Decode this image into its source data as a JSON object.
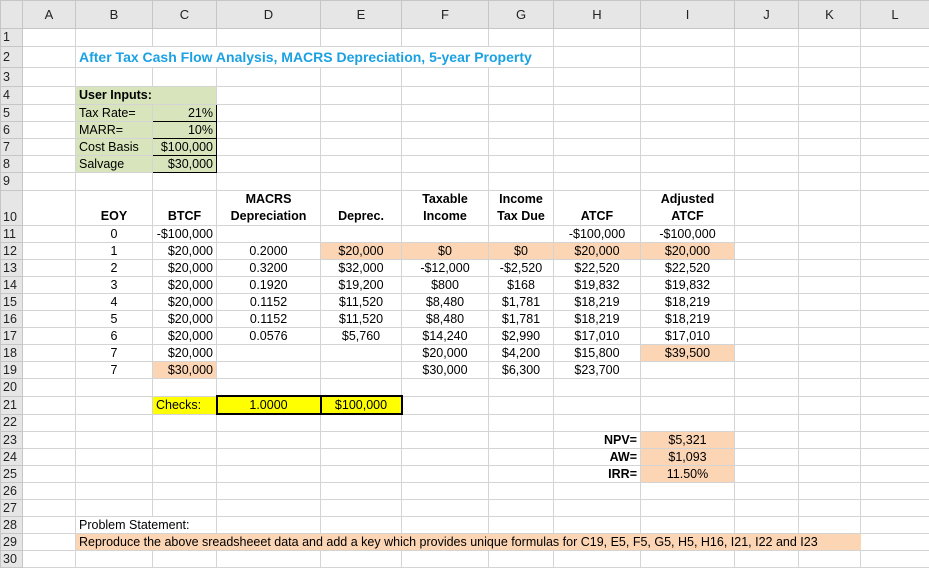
{
  "column_headers": [
    "A",
    "B",
    "C",
    "D",
    "E",
    "F",
    "G",
    "H",
    "I",
    "J",
    "K",
    "L"
  ],
  "row_numbers": [
    "1",
    "2",
    "3",
    "4",
    "5",
    "6",
    "7",
    "8",
    "9",
    "10",
    "11",
    "12",
    "13",
    "14",
    "15",
    "16",
    "17",
    "18",
    "19",
    "20",
    "21",
    "22",
    "23",
    "24",
    "25",
    "26",
    "27",
    "28",
    "29",
    "30"
  ],
  "title": "After Tax Cash Flow Analysis, MACRS Depreciation, 5-year Property",
  "inputs": {
    "heading": "User Inputs:",
    "items": [
      {
        "label": "Tax Rate=",
        "value": "21%"
      },
      {
        "label": "MARR=",
        "value": "10%"
      },
      {
        "label": "Cost Basis",
        "value": "$100,000"
      },
      {
        "label": "Salvage",
        "value": "$30,000"
      }
    ]
  },
  "table": {
    "headers": [
      "EOY",
      "BTCF",
      "MACRS\nDepreciation",
      "Deprec.",
      "Taxable\nIncome",
      "Income\nTax Due",
      "ATCF",
      "Adjusted\nATCF"
    ],
    "rows": [
      [
        "0",
        "-$100,000",
        "",
        "",
        "",
        "",
        "-$100,000",
        "-$100,000"
      ],
      [
        "1",
        "$20,000",
        "0.2000",
        "$20,000",
        "$0",
        "$0",
        "$20,000",
        "$20,000"
      ],
      [
        "2",
        "$20,000",
        "0.3200",
        "$32,000",
        "-$12,000",
        "-$2,520",
        "$22,520",
        "$22,520"
      ],
      [
        "3",
        "$20,000",
        "0.1920",
        "$19,200",
        "$800",
        "$168",
        "$19,832",
        "$19,832"
      ],
      [
        "4",
        "$20,000",
        "0.1152",
        "$11,520",
        "$8,480",
        "$1,781",
        "$18,219",
        "$18,219"
      ],
      [
        "5",
        "$20,000",
        "0.1152",
        "$11,520",
        "$8,480",
        "$1,781",
        "$18,219",
        "$18,219"
      ],
      [
        "6",
        "$20,000",
        "0.0576",
        "$5,760",
        "$14,240",
        "$2,990",
        "$17,010",
        "$17,010"
      ],
      [
        "7",
        "$20,000",
        "",
        "",
        "$20,000",
        "$4,200",
        "$15,800",
        "$39,500"
      ],
      [
        "7",
        "$30,000",
        "",
        "",
        "$30,000",
        "$6,300",
        "$23,700",
        ""
      ]
    ]
  },
  "checks": {
    "label": "Checks:",
    "macrs_sum": "1.0000",
    "deprec_sum": "$100,000"
  },
  "results": [
    {
      "label": "NPV=",
      "value": "$5,321"
    },
    {
      "label": "AW=",
      "value": "$1,093"
    },
    {
      "label": "IRR=",
      "value": "11.50%"
    }
  ],
  "problem": {
    "label": "Problem Statement:",
    "text": "Reproduce the above sreadsheeet data and add a key which provides unique formulas for C19, E5, F5, G5, H5, H16, I21, I22 and I23"
  },
  "colors": {
    "title": "#1ba1e2",
    "input_fill": "#d8e4bc",
    "highlight_fill": "#fcd5b4",
    "check_fill": "#ffff00"
  }
}
